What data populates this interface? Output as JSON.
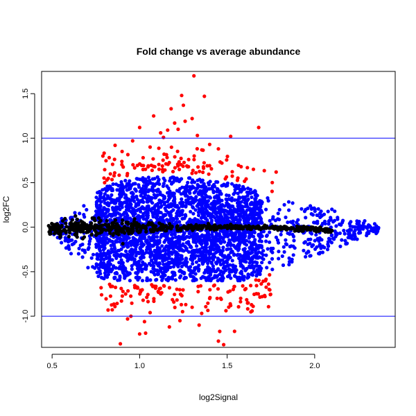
{
  "chart_data": {
    "type": "scatter",
    "title": "Fold change vs average abundance",
    "xlabel": "log2Signal",
    "ylabel": "log2FC",
    "xlim": [
      0.44,
      2.46
    ],
    "ylim": [
      -1.35,
      1.75
    ],
    "x_ticks": [
      0.5,
      1.0,
      1.5,
      2.0
    ],
    "x_tick_labels": [
      "0.5",
      "1.0",
      "1.5",
      "2.0"
    ],
    "y_ticks": [
      -1.0,
      -0.5,
      0.0,
      0.5,
      1.0,
      1.5
    ],
    "y_tick_labels": [
      "-1.0",
      "-0.5",
      "0.0",
      "0.5",
      "1.0",
      "1.5"
    ],
    "reference_lines": [
      1.0,
      -1.0
    ],
    "grid": false,
    "colors": {
      "reference_line": "#0000ff"
    },
    "series": [
      {
        "color": "#0000ff",
        "envelope": {
          "x": [
            0.5,
            0.6,
            0.7,
            0.8,
            0.9,
            1.0,
            1.1,
            1.2,
            1.3,
            1.4,
            1.5,
            1.6,
            1.7,
            1.8,
            1.9,
            2.0,
            2.1,
            2.2,
            2.3,
            2.37
          ],
          "upper": [
            0.05,
            0.15,
            0.3,
            0.45,
            0.52,
            0.55,
            0.57,
            0.56,
            0.55,
            0.52,
            0.5,
            0.45,
            0.38,
            0.34,
            0.27,
            0.23,
            0.2,
            0.13,
            0.07,
            0.03
          ],
          "lower": [
            -0.08,
            -0.28,
            -0.5,
            -0.58,
            -0.6,
            -0.6,
            -0.6,
            -0.6,
            -0.6,
            -0.6,
            -0.6,
            -0.6,
            -0.52,
            -0.45,
            -0.4,
            -0.32,
            -0.25,
            -0.18,
            -0.1,
            -0.06
          ]
        }
      },
      {
        "color": "#000000",
        "envelope": {
          "x": [
            0.48,
            0.6,
            0.8,
            1.0,
            1.2,
            1.4,
            1.6,
            1.8,
            2.0,
            2.1
          ],
          "center": [
            -0.03,
            -0.01,
            0.0,
            0.0,
            0.0,
            0.0,
            0.0,
            -0.01,
            -0.02,
            -0.04
          ],
          "spread": [
            0.05,
            0.1,
            0.08,
            0.05,
            0.03,
            0.025,
            0.02,
            0.02,
            0.02,
            0.02
          ]
        }
      },
      {
        "color": "#ff0000",
        "points": [
          [
            1.31,
            1.7
          ],
          [
            1.24,
            1.48
          ],
          [
            1.37,
            1.47
          ],
          [
            1.25,
            1.37
          ],
          [
            1.18,
            1.33
          ],
          [
            1.08,
            1.25
          ],
          [
            1.2,
            1.17
          ],
          [
            1.26,
            1.19
          ],
          [
            1.3,
            1.22
          ],
          [
            1.68,
            1.12
          ],
          [
            1.33,
            1.03
          ],
          [
            1.52,
            1.02
          ],
          [
            1.0,
            1.12
          ],
          [
            1.12,
            1.06
          ],
          [
            1.16,
            1.09
          ],
          [
            1.22,
            1.1
          ],
          [
            0.96,
            0.97
          ],
          [
            1.4,
            0.93
          ],
          [
            0.86,
            0.92
          ],
          [
            1.06,
            0.9
          ],
          [
            0.79,
            0.8
          ],
          [
            1.58,
            0.68
          ],
          [
            1.78,
            0.62
          ],
          [
            1.65,
            0.65
          ],
          [
            1.47,
            0.72
          ],
          [
            0.9,
            0.85
          ],
          [
            1.02,
            0.78
          ],
          [
            1.14,
            0.82
          ],
          [
            1.28,
            0.76
          ],
          [
            1.45,
            0.88
          ],
          [
            0.95,
            -1.0
          ],
          [
            1.17,
            -1.12
          ],
          [
            0.89,
            -1.31
          ],
          [
            1.45,
            -1.28
          ],
          [
            1.48,
            -1.32
          ],
          [
            1.0,
            -1.2
          ],
          [
            1.23,
            -1.05
          ],
          [
            1.34,
            -1.1
          ],
          [
            0.82,
            -0.93
          ],
          [
            1.06,
            -0.96
          ],
          [
            1.3,
            -0.9
          ],
          [
            1.52,
            -0.88
          ],
          [
            1.62,
            -0.85
          ],
          [
            1.7,
            -0.78
          ],
          [
            1.74,
            -0.7
          ],
          [
            1.02,
            -0.82
          ],
          [
            1.12,
            -0.75
          ],
          [
            1.4,
            -0.8
          ],
          [
            0.92,
            -0.75
          ],
          [
            0.78,
            -0.68
          ]
        ]
      }
    ]
  }
}
